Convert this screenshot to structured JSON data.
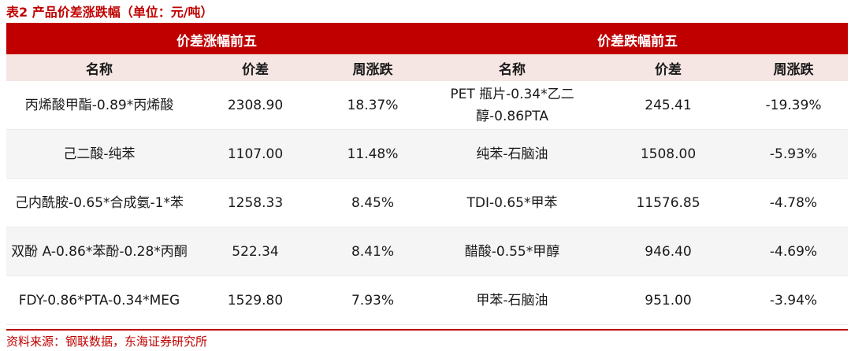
{
  "caption": "表2  产品价差涨跌幅（单位：元/吨）",
  "group_left": "价差涨幅前五",
  "group_right": "价差跌幅前五",
  "columns": {
    "name_left": "名称",
    "spread_left": "价差",
    "change_left": "周涨跌",
    "name_right": "名称",
    "spread_right": "价差",
    "change_right": "周涨跌"
  },
  "rows": [
    {
      "up_name": "丙烯酸甲酯-0.89*丙烯酸",
      "up_spread": "2308.90",
      "up_change": "18.37%",
      "down_name": "PET 瓶片-0.34*乙二醇-0.86PTA",
      "down_spread": "245.41",
      "down_change": "-19.39%"
    },
    {
      "up_name": "己二酸-纯苯",
      "up_spread": "1107.00",
      "up_change": "11.48%",
      "down_name": "纯苯-石脑油",
      "down_spread": "1508.00",
      "down_change": "-5.93%"
    },
    {
      "up_name": "己内酰胺-0.65*合成氨-1*苯",
      "up_spread": "1258.33",
      "up_change": "8.45%",
      "down_name": "TDI-0.65*甲苯",
      "down_spread": "11576.85",
      "down_change": "-4.78%"
    },
    {
      "up_name": "双酚 A-0.86*苯酚-0.28*丙酮",
      "up_spread": "522.34",
      "up_change": "8.41%",
      "down_name": "醋酸-0.55*甲醇",
      "down_spread": "946.40",
      "down_change": "-4.69%"
    },
    {
      "up_name": "FDY-0.86*PTA-0.34*MEG",
      "up_spread": "1529.80",
      "up_change": "7.93%",
      "down_name": "甲苯-石脑油",
      "down_spread": "951.00",
      "down_change": "-3.94%"
    }
  ],
  "source": "资料来源：钢联数据，东海证券研究所",
  "colors": {
    "accent": "#c00000",
    "subheader_bg": "#f5e6e3",
    "row_alt_bg": "#f5f5f5"
  }
}
